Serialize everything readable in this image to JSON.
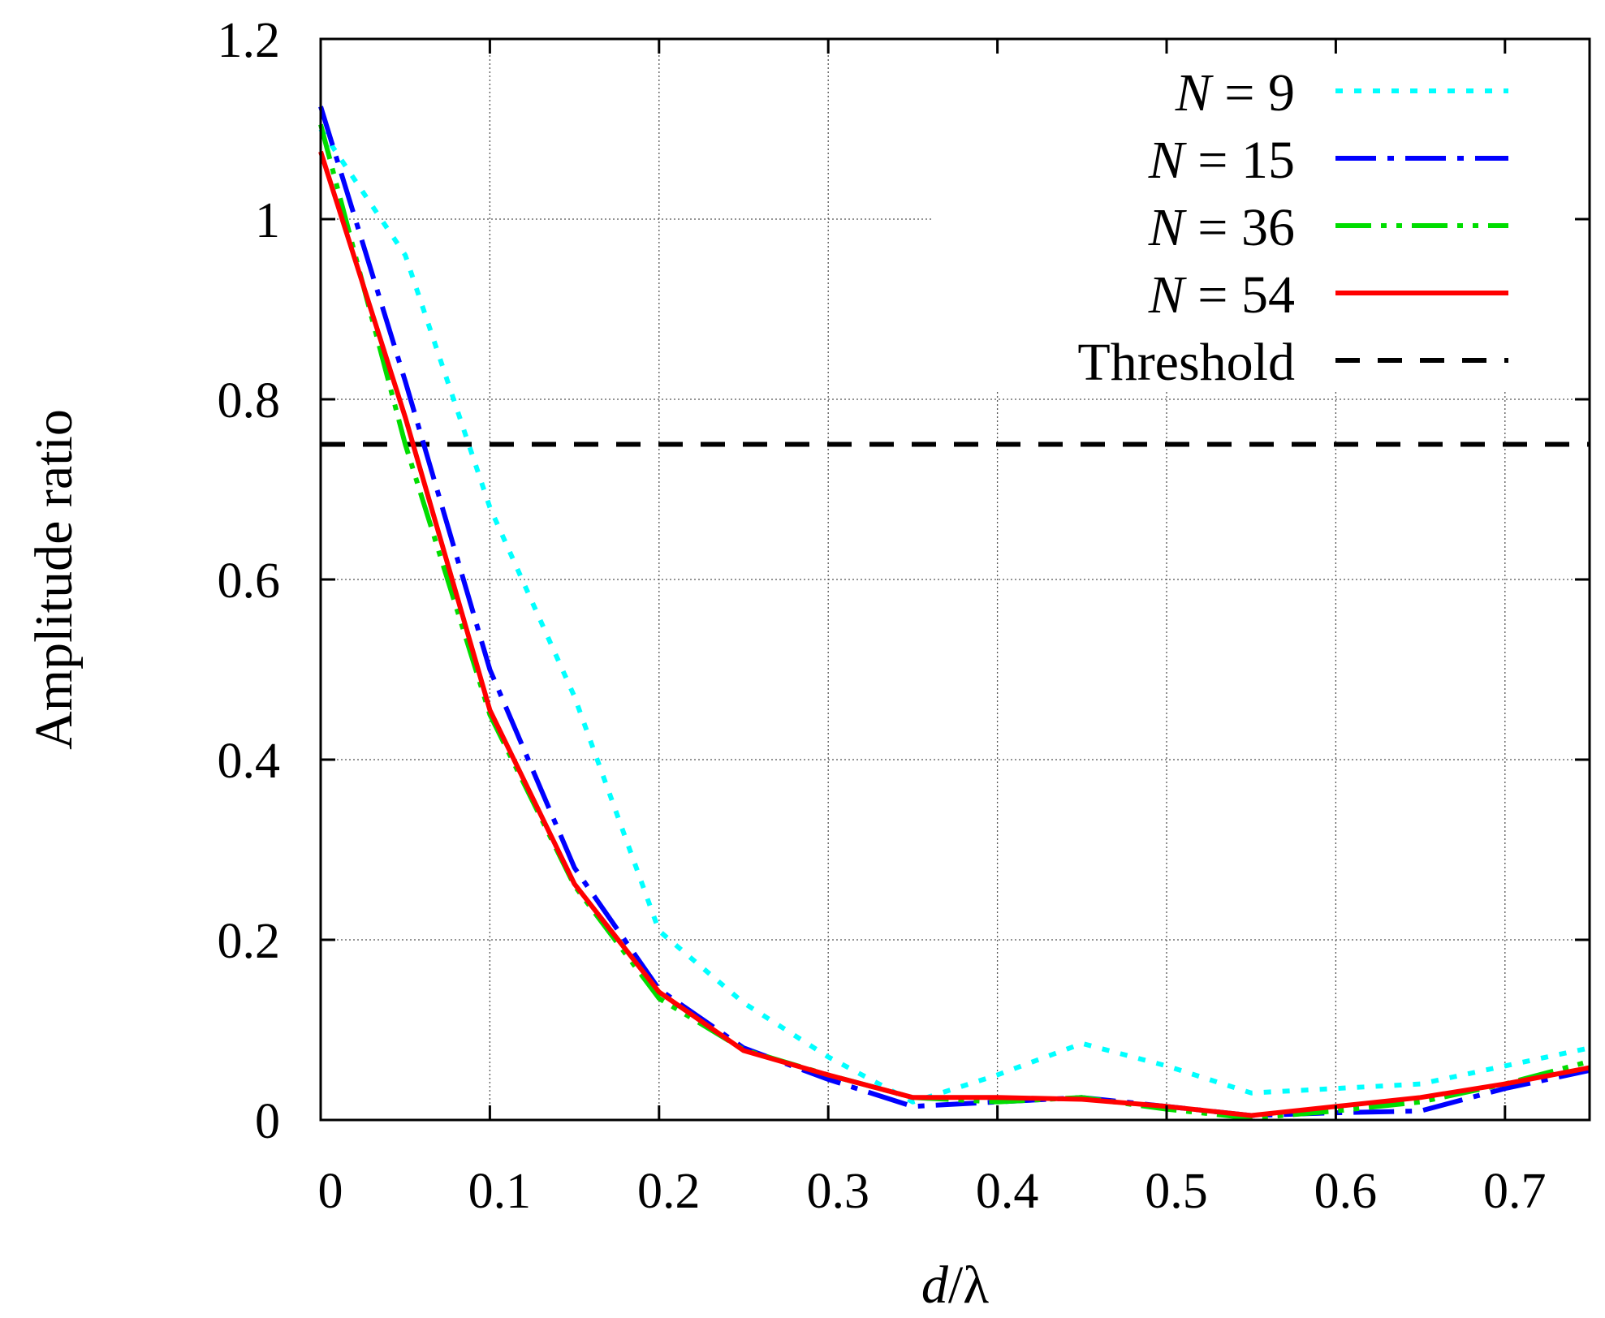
{
  "chart_data": {
    "type": "line",
    "title": "",
    "xlabel": "d/λ",
    "xlabel_parts": {
      "var": "d",
      "sep": "/",
      "sym": "λ"
    },
    "ylabel": "Amplitude ratio",
    "xlim": [
      0,
      0.75
    ],
    "ylim": [
      0,
      1.2
    ],
    "xticks": [
      0,
      0.1,
      0.2,
      0.3,
      0.4,
      0.5,
      0.6,
      0.7
    ],
    "xtick_labels": [
      "0",
      "0.1",
      "0.2",
      "0.3",
      "0.4",
      "0.5",
      "0.6",
      "0.7"
    ],
    "yticks": [
      0,
      0.2,
      0.4,
      0.6,
      0.8,
      1,
      1.2
    ],
    "ytick_labels": [
      "0",
      "0.2",
      "0.4",
      "0.6",
      "0.8",
      "1",
      "1.2"
    ],
    "grid": true,
    "legend_position": "top-right",
    "series": [
      {
        "name": "N = 9",
        "label_var": "N",
        "label_rest": " = 9",
        "color": "#00ffff",
        "style": "dotted",
        "x": [
          0,
          0.05,
          0.1,
          0.15,
          0.2,
          0.25,
          0.3,
          0.35,
          0.4,
          0.45,
          0.5,
          0.55,
          0.6,
          0.65,
          0.7,
          0.75
        ],
        "values": [
          1.1,
          0.96,
          0.68,
          0.47,
          0.21,
          0.13,
          0.07,
          0.02,
          0.05,
          0.085,
          0.06,
          0.03,
          0.035,
          0.04,
          0.06,
          0.08
        ]
      },
      {
        "name": "N = 15",
        "label_var": "N",
        "label_rest": " = 15",
        "color": "#0000ff",
        "style": "dash-dot",
        "x": [
          0,
          0.05,
          0.1,
          0.15,
          0.2,
          0.25,
          0.3,
          0.35,
          0.4,
          0.45,
          0.5,
          0.55,
          0.6,
          0.65,
          0.7,
          0.75
        ],
        "values": [
          1.125,
          0.82,
          0.5,
          0.28,
          0.145,
          0.08,
          0.045,
          0.015,
          0.02,
          0.025,
          0.015,
          0.005,
          0.008,
          0.01,
          0.035,
          0.055
        ]
      },
      {
        "name": "N = 36",
        "label_var": "N",
        "label_rest": " = 36",
        "color": "#00dd00",
        "style": "dash-dot-dot",
        "x": [
          0,
          0.05,
          0.1,
          0.15,
          0.2,
          0.25,
          0.3,
          0.35,
          0.4,
          0.45,
          0.5,
          0.55,
          0.6,
          0.65,
          0.7,
          0.75
        ],
        "values": [
          1.105,
          0.75,
          0.45,
          0.26,
          0.135,
          0.078,
          0.05,
          0.025,
          0.02,
          0.025,
          0.012,
          0.002,
          0.01,
          0.02,
          0.04,
          0.065
        ]
      },
      {
        "name": "N = 54",
        "label_var": "N",
        "label_rest": " = 54",
        "color": "#ff0000",
        "style": "solid",
        "x": [
          0,
          0.05,
          0.1,
          0.15,
          0.2,
          0.25,
          0.3,
          0.35,
          0.4,
          0.45,
          0.5,
          0.55,
          0.6,
          0.65,
          0.7,
          0.75
        ],
        "values": [
          1.075,
          0.78,
          0.455,
          0.262,
          0.142,
          0.077,
          0.05,
          0.025,
          0.025,
          0.023,
          0.015,
          0.005,
          0.015,
          0.025,
          0.04,
          0.058
        ]
      }
    ],
    "threshold": {
      "name": "Threshold",
      "value": 0.75,
      "color": "#000000",
      "style": "dashed"
    }
  }
}
